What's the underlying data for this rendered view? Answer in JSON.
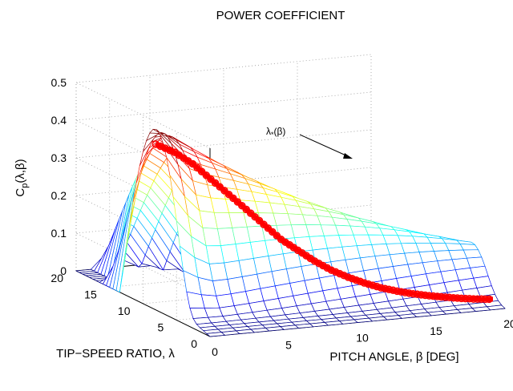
{
  "chart_data": {
    "type": "surface3d",
    "title": "POWER COEFFICIENT",
    "xlabel": "PITCH ANGLE,  β [DEG]",
    "ylabel": "TIP−SPEED RATIO, λ",
    "zlabel_main": "C",
    "zlabel_sub": "p",
    "zlabel_args": "(λ,β)",
    "x_ticks": [
      "0",
      "5",
      "10",
      "15",
      "20"
    ],
    "y_ticks": [
      "0",
      "5",
      "10",
      "15",
      "20"
    ],
    "z_ticks": [
      "0",
      "0.1",
      "0.2",
      "0.3",
      "0.4",
      "0.5"
    ],
    "xlim": [
      0,
      20
    ],
    "ylim": [
      0,
      20
    ],
    "zlim": [
      0,
      0.5
    ],
    "grid": true,
    "surface_colormap": "jet",
    "annotation": {
      "text": "λ",
      "sub": "*",
      "args": "(β)"
    },
    "optimal_curve": {
      "name": "λ*(β)",
      "color": "#ff0000",
      "points": [
        {
          "beta": 0,
          "lambda": 8.1,
          "cp": 0.44
        },
        {
          "beta": 1,
          "lambda": 7.5,
          "cp": 0.42
        },
        {
          "beta": 2,
          "lambda": 7.0,
          "cp": 0.39
        },
        {
          "beta": 3,
          "lambda": 6.5,
          "cp": 0.35
        },
        {
          "beta": 4,
          "lambda": 6.0,
          "cp": 0.31
        },
        {
          "beta": 5,
          "lambda": 5.6,
          "cp": 0.27
        },
        {
          "beta": 6,
          "lambda": 5.2,
          "cp": 0.23
        },
        {
          "beta": 7,
          "lambda": 4.8,
          "cp": 0.19
        },
        {
          "beta": 8,
          "lambda": 4.5,
          "cp": 0.16
        },
        {
          "beta": 9,
          "lambda": 4.2,
          "cp": 0.13
        },
        {
          "beta": 10,
          "lambda": 3.9,
          "cp": 0.105
        },
        {
          "beta": 11,
          "lambda": 3.6,
          "cp": 0.085
        },
        {
          "beta": 12,
          "lambda": 3.4,
          "cp": 0.068
        },
        {
          "beta": 13,
          "lambda": 3.1,
          "cp": 0.054
        },
        {
          "beta": 14,
          "lambda": 2.9,
          "cp": 0.043
        },
        {
          "beta": 15,
          "lambda": 2.7,
          "cp": 0.034
        },
        {
          "beta": 16,
          "lambda": 2.5,
          "cp": 0.027
        },
        {
          "beta": 17,
          "lambda": 2.3,
          "cp": 0.021
        },
        {
          "beta": 18,
          "lambda": 2.1,
          "cp": 0.016
        },
        {
          "beta": 19,
          "lambda": 1.9,
          "cp": 0.012
        },
        {
          "beta": 20,
          "lambda": 1.8,
          "cp": 0.009
        }
      ]
    }
  }
}
